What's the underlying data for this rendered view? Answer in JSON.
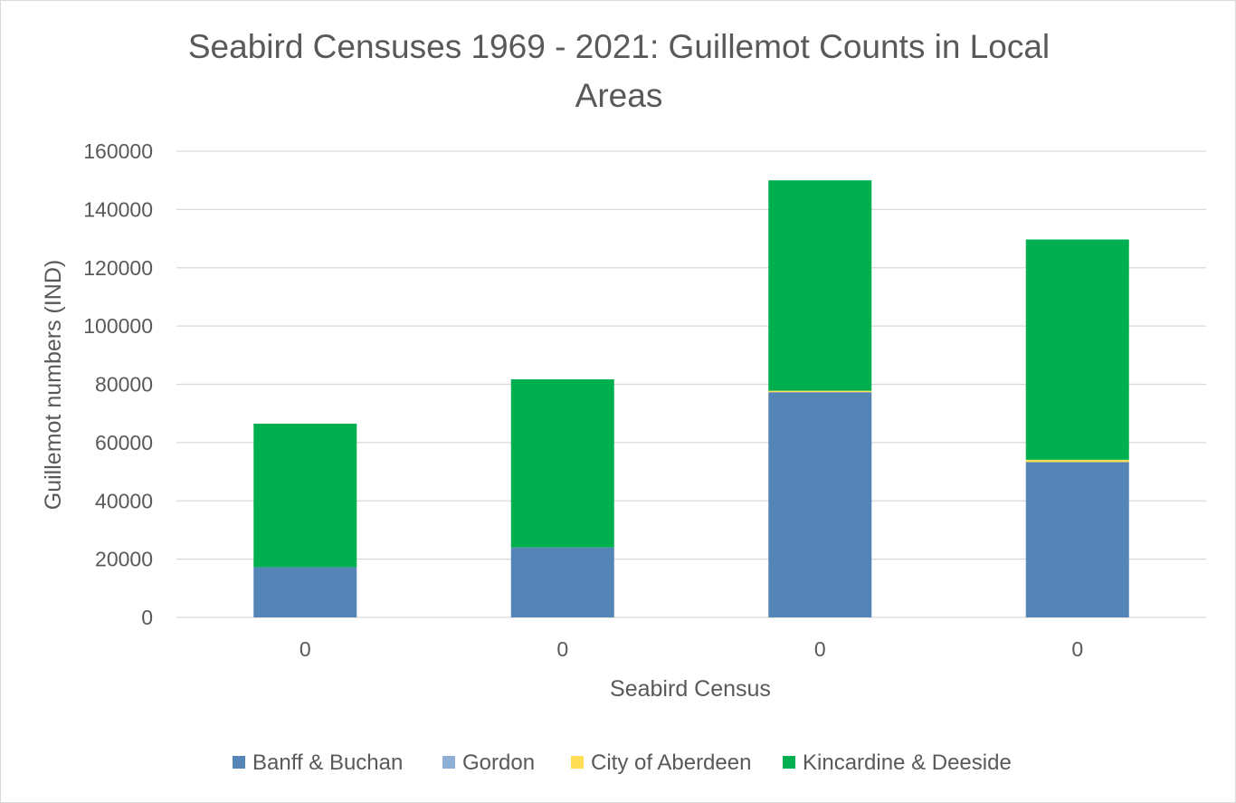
{
  "chart_data": {
    "type": "bar",
    "stacked": true,
    "title_lines": [
      "Seabird Censuses 1969 - 2021: Guillemot Counts in Local",
      "Areas"
    ],
    "xlabel": "Seabird Census",
    "ylabel": "Guillemot numbers (IND)",
    "categories": [
      "0",
      "0",
      "0",
      "0"
    ],
    "ylim": [
      0,
      160000
    ],
    "yticks": [
      0,
      20000,
      40000,
      60000,
      80000,
      100000,
      120000,
      140000,
      160000
    ],
    "grid": true,
    "legend_position": "bottom",
    "series": [
      {
        "name": "Banff & Buchan",
        "color": "#5584b6",
        "values": [
          17200,
          24000,
          77300,
          53300
        ]
      },
      {
        "name": "Gordon",
        "color": "#8eafd4",
        "values": [
          0,
          0,
          0,
          0
        ]
      },
      {
        "name": "City of Aberdeen",
        "color": "#ffdd55",
        "values": [
          0,
          0,
          500,
          800
        ]
      },
      {
        "name": "Kincardine & Deeside",
        "color": "#00b050",
        "values": [
          49300,
          57700,
          72200,
          75600
        ]
      }
    ]
  }
}
